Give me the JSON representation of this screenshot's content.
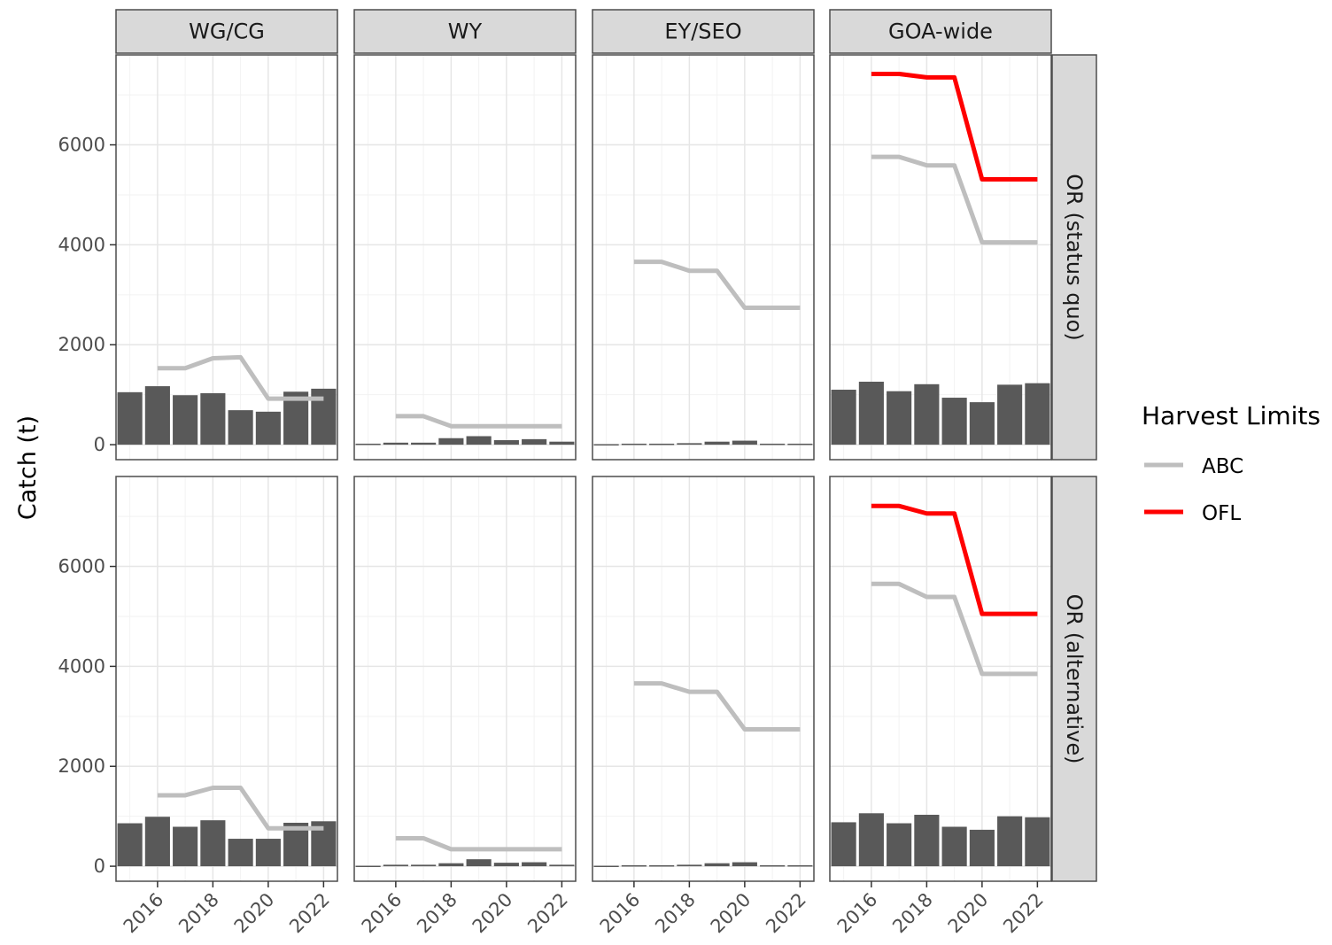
{
  "chart_data": {
    "type": "bar",
    "ylabel": "Catch (t)",
    "xlabel": "",
    "ylim": [
      -300,
      7800
    ],
    "xlim": [
      2014.5,
      2022.5
    ],
    "x_ticks": [
      "2016",
      "2018",
      "2020",
      "2022"
    ],
    "y_ticks": [
      "0",
      "2000",
      "4000",
      "6000"
    ],
    "grid": true,
    "columns": [
      "WG/CG",
      "WY",
      "EY/SEO",
      "GOA-wide"
    ],
    "rows": [
      "OR (status quo)",
      "OR (alternative)"
    ],
    "legend": {
      "title": "Harvest Limits",
      "position": "right",
      "entries": [
        {
          "label": "ABC",
          "color": "#bebebe"
        },
        {
          "label": "OFL",
          "color": "#ff0000"
        }
      ]
    },
    "bar_color": "#595959",
    "years": [
      2015,
      2016,
      2017,
      2018,
      2019,
      2020,
      2021,
      2022
    ],
    "line_years": [
      2016,
      2017,
      2018,
      2019,
      2020,
      2021,
      2022
    ],
    "panels": [
      {
        "row": 0,
        "col": 0,
        "catch": [
          1050,
          1170,
          990,
          1030,
          690,
          660,
          1060,
          1120
        ],
        "abc": [
          1530,
          1530,
          1730,
          1750,
          920,
          920,
          920
        ],
        "ofl": null
      },
      {
        "row": 0,
        "col": 1,
        "catch": [
          20,
          40,
          40,
          130,
          170,
          90,
          110,
          60
        ],
        "abc": [
          570,
          570,
          370,
          370,
          370,
          370,
          370
        ],
        "ofl": null
      },
      {
        "row": 0,
        "col": 2,
        "catch": [
          10,
          20,
          20,
          30,
          60,
          80,
          20,
          20
        ],
        "abc": [
          3660,
          3660,
          3480,
          3480,
          2740,
          2740,
          2740
        ],
        "ofl": null
      },
      {
        "row": 0,
        "col": 3,
        "catch": [
          1100,
          1260,
          1070,
          1210,
          940,
          850,
          1200,
          1230
        ],
        "abc": [
          5760,
          5760,
          5590,
          5590,
          4050,
          4050,
          4050
        ],
        "ofl": [
          7420,
          7420,
          7350,
          7350,
          5310,
          5310,
          5310
        ]
      },
      {
        "row": 1,
        "col": 0,
        "catch": [
          860,
          990,
          790,
          920,
          550,
          550,
          870,
          900
        ],
        "abc": [
          1420,
          1420,
          1570,
          1570,
          760,
          760,
          760
        ],
        "ofl": null
      },
      {
        "row": 1,
        "col": 1,
        "catch": [
          10,
          30,
          30,
          60,
          140,
          70,
          80,
          30
        ],
        "abc": [
          560,
          560,
          340,
          340,
          340,
          340,
          340
        ],
        "ofl": null
      },
      {
        "row": 1,
        "col": 2,
        "catch": [
          10,
          20,
          20,
          30,
          60,
          80,
          20,
          20
        ],
        "abc": [
          3660,
          3660,
          3490,
          3490,
          2740,
          2740,
          2740
        ],
        "ofl": null
      },
      {
        "row": 1,
        "col": 3,
        "catch": [
          880,
          1060,
          860,
          1030,
          790,
          730,
          1000,
          980
        ],
        "abc": [
          5650,
          5650,
          5390,
          5390,
          3850,
          3850,
          3850
        ],
        "ofl": [
          7210,
          7210,
          7060,
          7060,
          5050,
          5050,
          5050
        ]
      }
    ]
  }
}
